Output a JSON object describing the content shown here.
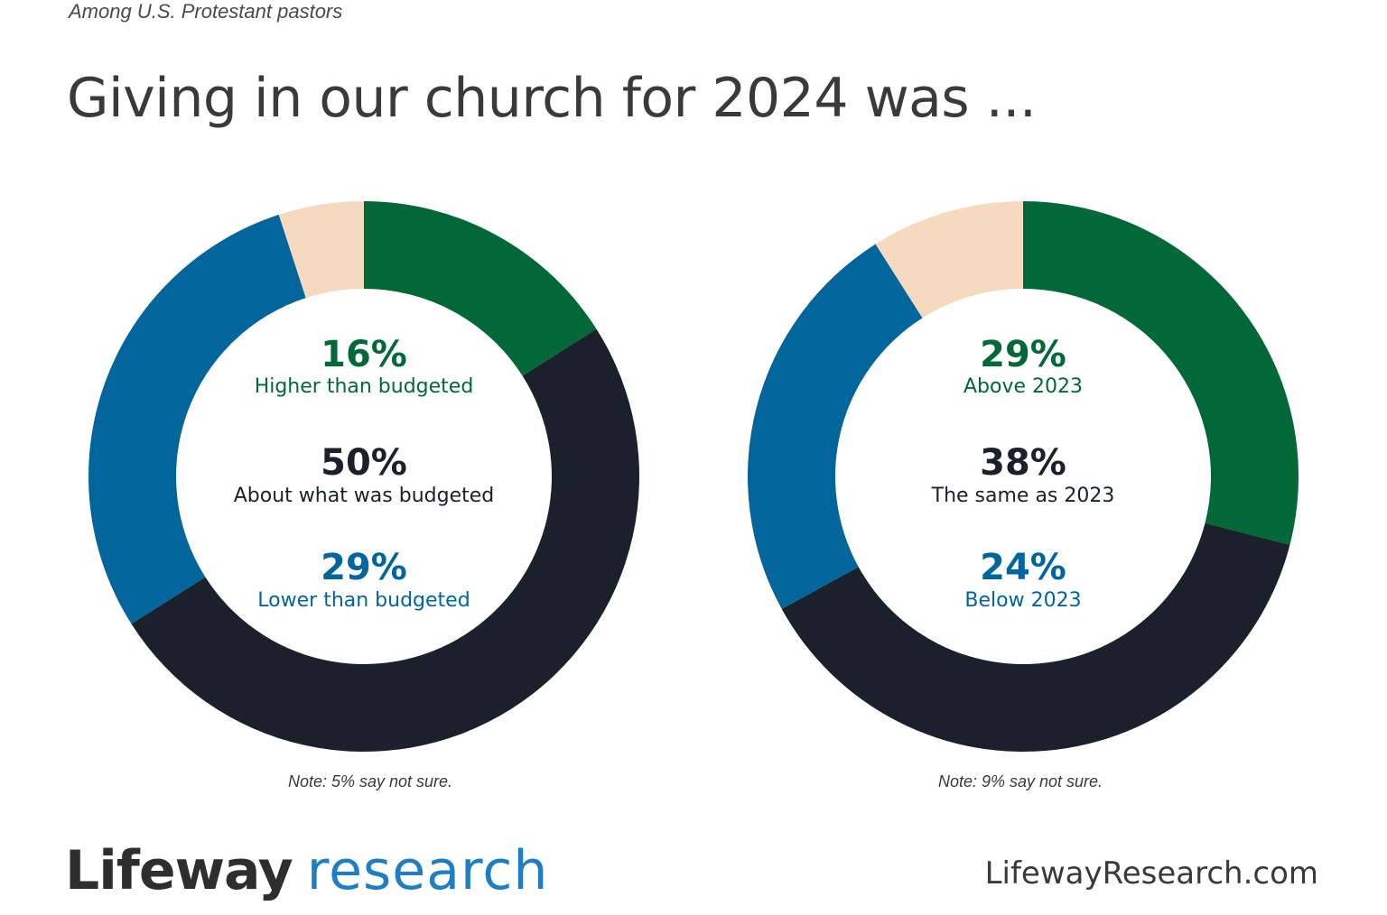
{
  "header": {
    "subtitle": "Among U.S. Protestant pastors",
    "title": "Giving in our church for 2024 was ..."
  },
  "colors": {
    "green": "#026837",
    "dark": "#1b212a",
    "blue": "#02659b",
    "peach": "#f5dac0"
  },
  "chart_data": [
    {
      "type": "donut",
      "slices": [
        {
          "label": "Higher than budgeted",
          "value": 16,
          "display": "16%",
          "color": "#026837"
        },
        {
          "label": "About what was  budgeted",
          "value": 50,
          "display": "50%",
          "color": "#1b212a"
        },
        {
          "label": "Lower than budgeted",
          "value": 29,
          "display": "29%",
          "color": "#02659b"
        },
        {
          "label": "",
          "value": 5,
          "display": "",
          "color": "#f5dac0"
        }
      ],
      "note": "Note: 5% say not sure."
    },
    {
      "type": "donut",
      "slices": [
        {
          "label": "Above 2023",
          "value": 29,
          "display": "29%",
          "color": "#026837"
        },
        {
          "label": "The same as 2023",
          "value": 38,
          "display": "38%",
          "color": "#1b212a"
        },
        {
          "label": "Below 2023",
          "value": 24,
          "display": "24%",
          "color": "#02659b"
        },
        {
          "label": "",
          "value": 9,
          "display": "",
          "color": "#f5dac0"
        }
      ],
      "note": "Note: 9% say not sure."
    }
  ],
  "footer": {
    "logo_word1": "Lifeway",
    "logo_word2": "research",
    "url": "LifewayResearch.com"
  }
}
